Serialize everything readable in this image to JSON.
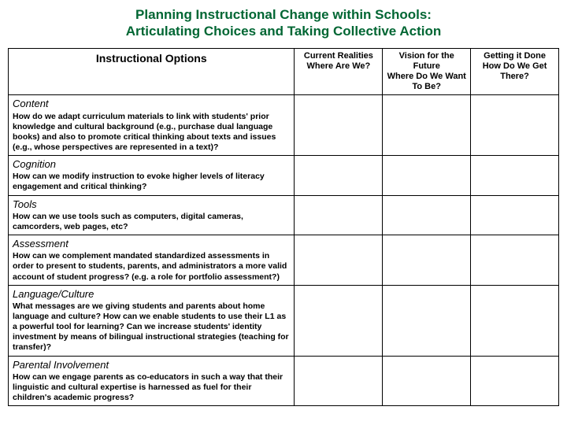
{
  "title_line1": "Planning Instructional Change within Schools:",
  "title_line2": "Articulating Choices and Taking Collective Action",
  "headers": {
    "options": "Instructional Options",
    "col1a": "Current Realities",
    "col1b": "Where Are We?",
    "col2a": "Vision for the Future",
    "col2b": "Where Do We Want To Be?",
    "col3a": "Getting it Done",
    "col3b": "How Do We Get There?"
  },
  "rows": [
    {
      "title": "Content",
      "text": "How do we adapt curriculum materials to link with students' prior knowledge and cultural background (e.g., purchase dual language books) and also to promote critical thinking about texts and issues (e.g., whose perspectives are represented in a text)?"
    },
    {
      "title": "Cognition",
      "text": "How can we modify instruction to evoke higher levels of literacy engagement and critical thinking?"
    },
    {
      "title": "Tools",
      "text": "How can we use tools such as computers, digital cameras, camcorders, web pages, etc?"
    },
    {
      "title": " Assessment",
      "text": "How can we complement mandated standardized assessments in order to present to students, parents, and administrators a more valid account of student progress? (e.g. a role for portfolio assessment?)"
    },
    {
      "title": "Language/Culture",
      "text": "What messages are we giving students and parents about home language and culture? How can we enable students to use their L1 as a powerful tool for learning? Can we increase students' identity investment by means of bilingual instructional strategies (teaching for transfer)?"
    },
    {
      "title": "Parental Involvement",
      "text": "How can we engage parents as co-educators in such a way that their linguistic and cultural expertise is harnessed as fuel for their children's academic progress?"
    }
  ]
}
